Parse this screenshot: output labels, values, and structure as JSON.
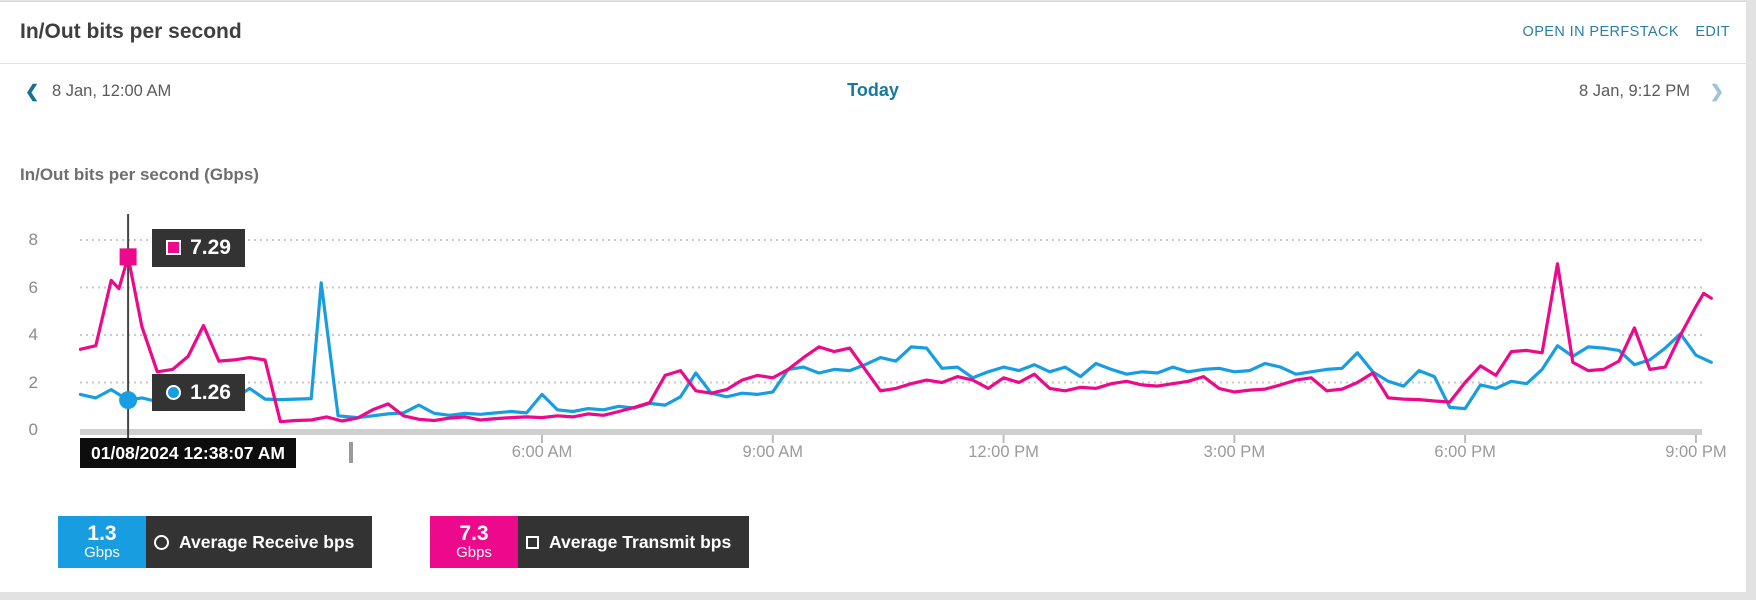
{
  "header": {
    "title": "In/Out bits per second",
    "open_in_perfstack": "OPEN IN PERFSTACK",
    "edit": "EDIT"
  },
  "time_nav": {
    "prev_icon": "❮",
    "next_icon": "❯",
    "range_start": "8 Jan, 12:00 AM",
    "center_label": "Today",
    "range_end": "8 Jan, 9:12 PM"
  },
  "colors": {
    "accent_teal": "#17799e",
    "link_teal": "#2a7fa5",
    "receive_blue": "#189de0",
    "transmit_pink": "#ec098c",
    "tooltip_bg": "#333333",
    "time_tooltip_bg": "#0d0d0d",
    "gridline": "#c9c9c9",
    "axis_bar": "#cfcfcf"
  },
  "chart_data": {
    "type": "line",
    "title": "In/Out bits per second (Gbps)",
    "grid": "horizontal dotted",
    "legend_position": "bottom",
    "x_axis": {
      "range_hours": [
        0,
        21.2
      ],
      "start_time": "8 Jan, 12:00 AM",
      "end_time": "8 Jan, 9:12 PM",
      "ticks": [
        {
          "hour": 6,
          "label": "6:00 AM"
        },
        {
          "hour": 9,
          "label": "9:00 AM"
        },
        {
          "hour": 12,
          "label": "12:00 PM"
        },
        {
          "hour": 15,
          "label": "3:00 PM"
        },
        {
          "hour": 18,
          "label": "6:00 PM"
        },
        {
          "hour": 21,
          "label": "9:00 PM"
        }
      ]
    },
    "y_axis": {
      "range": [
        0,
        8
      ],
      "ticks": [
        0,
        2,
        4,
        6,
        8
      ],
      "unit": "Gbps"
    },
    "cursor": {
      "hour": 0.62,
      "time_label": "01/08/2024 12:38:07 AM",
      "values": {
        "receive": "1.26",
        "transmit": "7.29"
      }
    },
    "series": [
      {
        "name": "Average Receive bps",
        "color": "#189de0",
        "marker": "circle",
        "avg_value": "1.3",
        "unit": "Gbps",
        "points": [
          [
            0,
            1.5
          ],
          [
            0.2,
            1.35
          ],
          [
            0.4,
            1.7
          ],
          [
            0.62,
            1.26
          ],
          [
            0.8,
            1.35
          ],
          [
            1,
            1.2
          ],
          [
            1.2,
            1.28
          ],
          [
            1.4,
            1.22
          ],
          [
            1.6,
            1.18
          ],
          [
            1.8,
            1.28
          ],
          [
            2,
            1.32
          ],
          [
            2.2,
            1.75
          ],
          [
            2.4,
            1.3
          ],
          [
            2.6,
            1.28
          ],
          [
            2.8,
            1.3
          ],
          [
            3,
            1.32
          ],
          [
            3.13,
            6.2
          ],
          [
            3.35,
            0.6
          ],
          [
            3.6,
            0.52
          ],
          [
            3.8,
            0.6
          ],
          [
            4,
            0.68
          ],
          [
            4.2,
            0.72
          ],
          [
            4.4,
            1.05
          ],
          [
            4.6,
            0.7
          ],
          [
            4.8,
            0.62
          ],
          [
            5,
            0.7
          ],
          [
            5.2,
            0.66
          ],
          [
            5.4,
            0.72
          ],
          [
            5.6,
            0.78
          ],
          [
            5.8,
            0.72
          ],
          [
            6,
            1.5
          ],
          [
            6.2,
            0.85
          ],
          [
            6.4,
            0.78
          ],
          [
            6.6,
            0.9
          ],
          [
            6.8,
            0.85
          ],
          [
            7,
            1
          ],
          [
            7.2,
            0.92
          ],
          [
            7.4,
            1.12
          ],
          [
            7.6,
            1.05
          ],
          [
            7.8,
            1.4
          ],
          [
            8,
            2.4
          ],
          [
            8.2,
            1.55
          ],
          [
            8.4,
            1.4
          ],
          [
            8.6,
            1.55
          ],
          [
            8.8,
            1.5
          ],
          [
            9,
            1.6
          ],
          [
            9.2,
            2.55
          ],
          [
            9.4,
            2.65
          ],
          [
            9.6,
            2.4
          ],
          [
            9.8,
            2.55
          ],
          [
            10,
            2.5
          ],
          [
            10.2,
            2.75
          ],
          [
            10.4,
            3.05
          ],
          [
            10.6,
            2.9
          ],
          [
            10.8,
            3.5
          ],
          [
            11,
            3.45
          ],
          [
            11.2,
            2.6
          ],
          [
            11.4,
            2.65
          ],
          [
            11.6,
            2.2
          ],
          [
            11.8,
            2.45
          ],
          [
            12,
            2.65
          ],
          [
            12.2,
            2.5
          ],
          [
            12.4,
            2.75
          ],
          [
            12.6,
            2.45
          ],
          [
            12.8,
            2.65
          ],
          [
            13,
            2.25
          ],
          [
            13.2,
            2.8
          ],
          [
            13.4,
            2.55
          ],
          [
            13.6,
            2.35
          ],
          [
            13.8,
            2.45
          ],
          [
            14,
            2.4
          ],
          [
            14.2,
            2.65
          ],
          [
            14.4,
            2.45
          ],
          [
            14.6,
            2.55
          ],
          [
            14.8,
            2.6
          ],
          [
            15,
            2.45
          ],
          [
            15.2,
            2.5
          ],
          [
            15.4,
            2.8
          ],
          [
            15.6,
            2.65
          ],
          [
            15.8,
            2.35
          ],
          [
            16,
            2.45
          ],
          [
            16.2,
            2.55
          ],
          [
            16.4,
            2.6
          ],
          [
            16.6,
            3.25
          ],
          [
            16.8,
            2.45
          ],
          [
            17,
            2.05
          ],
          [
            17.2,
            1.85
          ],
          [
            17.4,
            2.5
          ],
          [
            17.6,
            2.25
          ],
          [
            17.8,
            0.95
          ],
          [
            18,
            0.9
          ],
          [
            18.2,
            1.9
          ],
          [
            18.4,
            1.75
          ],
          [
            18.6,
            2.05
          ],
          [
            18.8,
            1.95
          ],
          [
            19,
            2.55
          ],
          [
            19.2,
            3.55
          ],
          [
            19.4,
            3.1
          ],
          [
            19.6,
            3.5
          ],
          [
            19.8,
            3.45
          ],
          [
            20,
            3.35
          ],
          [
            20.2,
            2.75
          ],
          [
            20.4,
            2.95
          ],
          [
            20.6,
            3.45
          ],
          [
            20.8,
            4.05
          ],
          [
            21,
            3.15
          ],
          [
            21.2,
            2.85
          ]
        ]
      },
      {
        "name": "Average Transmit bps",
        "color": "#ec098c",
        "marker": "square",
        "avg_value": "7.3",
        "unit": "Gbps",
        "points": [
          [
            0,
            3.4
          ],
          [
            0.2,
            3.55
          ],
          [
            0.4,
            6.3
          ],
          [
            0.5,
            5.95
          ],
          [
            0.62,
            7.29
          ],
          [
            0.8,
            4.35
          ],
          [
            1,
            2.45
          ],
          [
            1.2,
            2.55
          ],
          [
            1.4,
            3.1
          ],
          [
            1.6,
            4.4
          ],
          [
            1.8,
            2.9
          ],
          [
            2,
            2.95
          ],
          [
            2.2,
            3.05
          ],
          [
            2.4,
            2.95
          ],
          [
            2.6,
            0.35
          ],
          [
            2.8,
            0.4
          ],
          [
            3,
            0.42
          ],
          [
            3.2,
            0.55
          ],
          [
            3.4,
            0.38
          ],
          [
            3.6,
            0.5
          ],
          [
            3.8,
            0.85
          ],
          [
            4,
            1.1
          ],
          [
            4.2,
            0.6
          ],
          [
            4.4,
            0.45
          ],
          [
            4.6,
            0.4
          ],
          [
            4.8,
            0.5
          ],
          [
            5,
            0.55
          ],
          [
            5.2,
            0.42
          ],
          [
            5.4,
            0.48
          ],
          [
            5.6,
            0.52
          ],
          [
            5.8,
            0.55
          ],
          [
            6,
            0.52
          ],
          [
            6.2,
            0.6
          ],
          [
            6.4,
            0.55
          ],
          [
            6.6,
            0.68
          ],
          [
            6.8,
            0.62
          ],
          [
            7,
            0.78
          ],
          [
            7.2,
            0.95
          ],
          [
            7.4,
            1.15
          ],
          [
            7.6,
            2.3
          ],
          [
            7.8,
            2.5
          ],
          [
            8,
            1.65
          ],
          [
            8.2,
            1.55
          ],
          [
            8.4,
            1.7
          ],
          [
            8.6,
            2.1
          ],
          [
            8.8,
            2.3
          ],
          [
            9,
            2.2
          ],
          [
            9.2,
            2.55
          ],
          [
            9.4,
            3.05
          ],
          [
            9.6,
            3.5
          ],
          [
            9.8,
            3.3
          ],
          [
            10,
            3.45
          ],
          [
            10.2,
            2.55
          ],
          [
            10.4,
            1.65
          ],
          [
            10.6,
            1.75
          ],
          [
            10.8,
            1.95
          ],
          [
            11,
            2.1
          ],
          [
            11.2,
            2
          ],
          [
            11.4,
            2.25
          ],
          [
            11.6,
            2.1
          ],
          [
            11.8,
            1.75
          ],
          [
            12,
            2.2
          ],
          [
            12.2,
            2
          ],
          [
            12.4,
            2.35
          ],
          [
            12.6,
            1.75
          ],
          [
            12.8,
            1.65
          ],
          [
            13,
            1.8
          ],
          [
            13.2,
            1.75
          ],
          [
            13.4,
            1.95
          ],
          [
            13.6,
            2.05
          ],
          [
            13.8,
            1.9
          ],
          [
            14,
            1.85
          ],
          [
            14.2,
            1.95
          ],
          [
            14.4,
            2.05
          ],
          [
            14.6,
            2.25
          ],
          [
            14.8,
            1.75
          ],
          [
            15,
            1.6
          ],
          [
            15.2,
            1.68
          ],
          [
            15.4,
            1.72
          ],
          [
            15.6,
            1.9
          ],
          [
            15.8,
            2.1
          ],
          [
            16,
            2.2
          ],
          [
            16.2,
            1.65
          ],
          [
            16.4,
            1.72
          ],
          [
            16.6,
            2
          ],
          [
            16.8,
            2.4
          ],
          [
            17,
            1.35
          ],
          [
            17.2,
            1.3
          ],
          [
            17.4,
            1.28
          ],
          [
            17.6,
            1.22
          ],
          [
            17.8,
            1.18
          ],
          [
            18,
            2
          ],
          [
            18.2,
            2.7
          ],
          [
            18.4,
            2.3
          ],
          [
            18.6,
            3.3
          ],
          [
            18.8,
            3.35
          ],
          [
            19,
            3.25
          ],
          [
            19.2,
            7
          ],
          [
            19.4,
            2.85
          ],
          [
            19.6,
            2.5
          ],
          [
            19.8,
            2.55
          ],
          [
            20,
            2.9
          ],
          [
            20.2,
            4.3
          ],
          [
            20.4,
            2.55
          ],
          [
            20.6,
            2.65
          ],
          [
            20.8,
            4
          ],
          [
            21,
            5.2
          ],
          [
            21.1,
            5.75
          ],
          [
            21.2,
            5.55
          ]
        ]
      }
    ]
  }
}
